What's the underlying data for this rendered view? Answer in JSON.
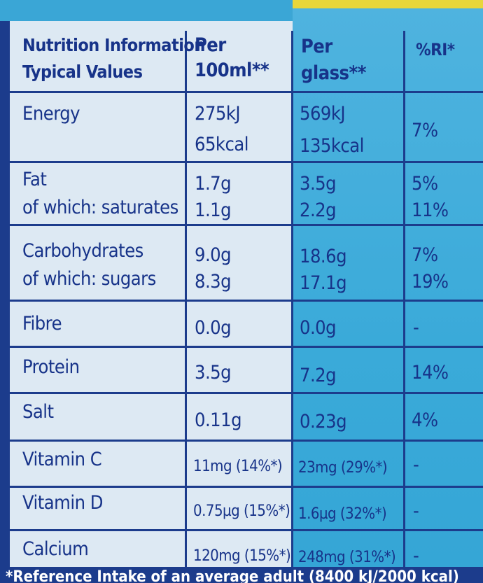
{
  "header": {
    "col1_line1": "Nutrition Information",
    "col1_line2": "Typical Values",
    "col2_line1": "Per",
    "col2_line2": "100ml**",
    "col3_line1": "Per",
    "col3_line2": "glass**",
    "col4": "%RI*"
  },
  "rows": [
    {
      "name": "Energy",
      "per100": "275kJ",
      "perglass": "569kJ",
      "ri": "7%",
      "per100_2": "65kcal",
      "perglass_2": "135kcal"
    },
    {
      "name": "Fat",
      "per100": "1.7g",
      "perglass": "3.5g",
      "ri": "5%",
      "name_2": "of which: saturates",
      "per100_2": "1.1g",
      "perglass_2": "2.2g",
      "ri_2": "11%"
    },
    {
      "name": "Carbohydrates",
      "per100": "9.0g",
      "perglass": "18.6g",
      "ri": "7%",
      "name_2": "of which: sugars",
      "per100_2": "8.3g",
      "perglass_2": "17.1g",
      "ri_2": "19%"
    },
    {
      "name": "Fibre",
      "per100": "0.0g",
      "perglass": "0.0g",
      "ri": "-"
    },
    {
      "name": "Protein",
      "per100": "3.5g",
      "perglass": "7.2g",
      "ri": "14%"
    },
    {
      "name": "Salt",
      "per100": "0.11g",
      "perglass": "0.23g",
      "ri": "4%"
    },
    {
      "name": "Vitamin C",
      "per100": "11mg (14%*)",
      "perglass": "23mg (29%*)",
      "ri": "-"
    },
    {
      "name": "Vitamin D",
      "per100": "0.75µg (15%*)",
      "perglass": "1.6µg (32%*)",
      "ri": "-"
    },
    {
      "name": "Calcium",
      "per100": "120mg (15%*)",
      "perglass": "248mg (31%*)",
      "ri": "-"
    }
  ],
  "footer": "*Reference Intake of an average adult (8400 kJ/2000 kcal)",
  "colors": {
    "ink": "#1c3c8c",
    "left_panel": "#dde9f3",
    "right_panel": "#3aaad9"
  }
}
